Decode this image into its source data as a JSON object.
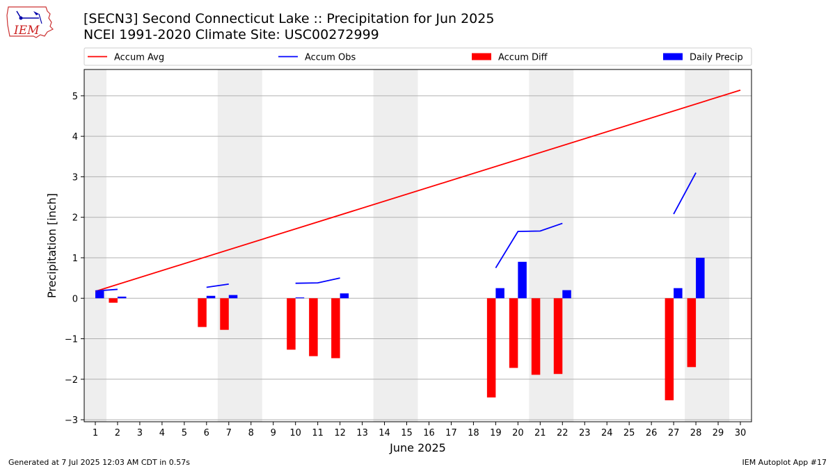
{
  "header": {
    "title_line1": "[SECN3] Second Connecticut Lake :: Precipitation for Jun 2025",
    "title_line2": "NCEI 1991-2020 Climate Site: USC00272999",
    "logo_text": "IEM"
  },
  "footer": {
    "left": "Generated at 7 Jul 2025 12:03 AM CDT in 0.57s",
    "right": "IEM Autoplot App #17"
  },
  "colors": {
    "accum_avg": "#ff0000",
    "accum_obs": "#0000ff",
    "accum_diff": "#ff0000",
    "daily_precip": "#0000ff",
    "weekend_shade": "#eeeeee",
    "grid": "#b0b0b0"
  },
  "chart_data": {
    "type": "bar",
    "xlabel": "June 2025",
    "ylabel": "Precipitation [inch]",
    "xlim": [
      0.5,
      30.5
    ],
    "ylim": [
      -3.05,
      5.65
    ],
    "yticks": [
      -3,
      -2,
      -1,
      0,
      1,
      2,
      3,
      4,
      5
    ],
    "ytick_labels": [
      "−3",
      "−2",
      "−1",
      "0",
      "1",
      "2",
      "3",
      "4",
      "5"
    ],
    "xticks": [
      1,
      2,
      3,
      4,
      5,
      6,
      7,
      8,
      9,
      10,
      11,
      12,
      13,
      14,
      15,
      16,
      17,
      18,
      19,
      20,
      21,
      22,
      23,
      24,
      25,
      26,
      27,
      28,
      29,
      30
    ],
    "grid": "horizontal",
    "legend_position": "top",
    "weekend_days": [
      1,
      7,
      8,
      14,
      15,
      21,
      22,
      28,
      29
    ],
    "legend": [
      "Accum Avg",
      "Accum Obs",
      "Accum Diff",
      "Daily Precip"
    ],
    "series": [
      {
        "name": "Accum Avg",
        "kind": "line",
        "x": [
          1,
          30
        ],
        "values": [
          0.17,
          5.14
        ]
      },
      {
        "name": "Accum Obs",
        "kind": "line-segments",
        "segments": [
          {
            "x": [
              1,
              2
            ],
            "values": [
              0.18,
              0.22
            ]
          },
          {
            "x": [
              6,
              7
            ],
            "values": [
              0.27,
              0.35
            ]
          },
          {
            "x": [
              10,
              11,
              12
            ],
            "values": [
              0.37,
              0.38,
              0.5
            ]
          },
          {
            "x": [
              19,
              20,
              21,
              22
            ],
            "values": [
              0.75,
              1.65,
              1.66,
              1.85
            ]
          },
          {
            "x": [
              27,
              28
            ],
            "values": [
              2.08,
              3.1
            ]
          }
        ]
      },
      {
        "name": "Accum Diff",
        "kind": "bar",
        "x": [
          2,
          6,
          7,
          10,
          11,
          12,
          19,
          20,
          21,
          22,
          27,
          28
        ],
        "values": [
          -0.11,
          -0.71,
          -0.78,
          -1.27,
          -1.43,
          -1.48,
          -2.45,
          -1.72,
          -1.89,
          -1.87,
          -2.52,
          -1.7
        ]
      },
      {
        "name": "Daily Precip",
        "kind": "bar",
        "x": [
          1,
          2,
          6,
          7,
          10,
          12,
          19,
          20,
          22,
          27,
          28
        ],
        "values": [
          0.18,
          0.04,
          0.06,
          0.08,
          0.02,
          0.12,
          0.25,
          0.9,
          0.2,
          0.25,
          1.0
        ]
      }
    ]
  }
}
